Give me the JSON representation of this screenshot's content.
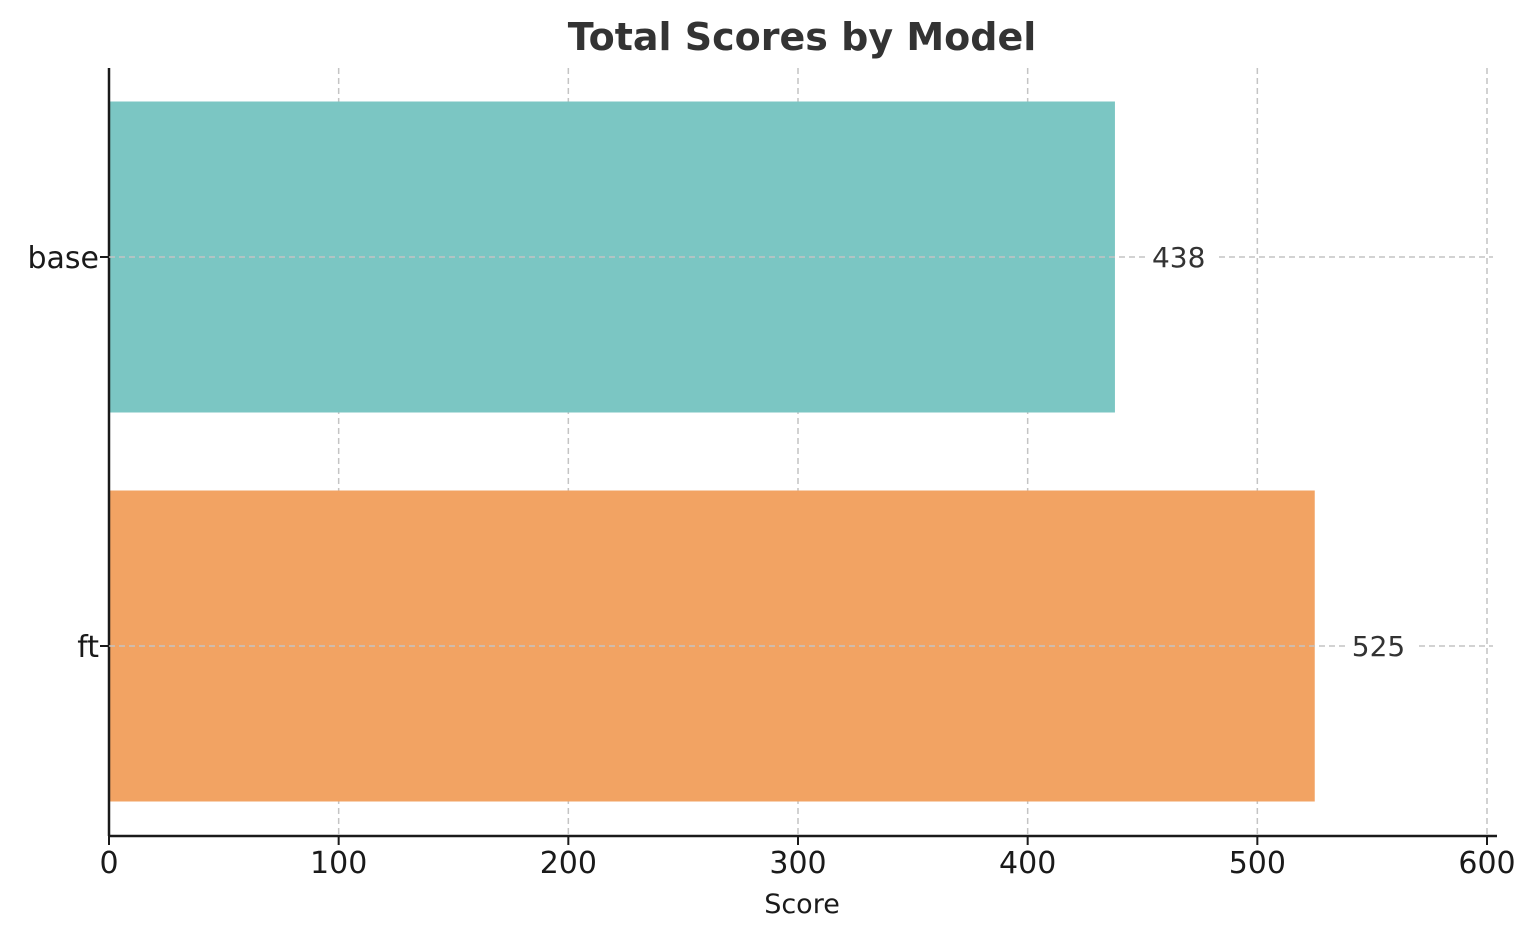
{
  "chart_data": {
    "type": "bar",
    "orientation": "horizontal",
    "title": "Total Scores by Model",
    "xlabel": "Score",
    "ylabel": "",
    "xlim": [
      0,
      600
    ],
    "xticks": [
      0,
      100,
      200,
      300,
      400,
      500,
      600
    ],
    "categories": [
      "base",
      "ft"
    ],
    "values": [
      438,
      525
    ],
    "data_labels": [
      "438",
      "525"
    ],
    "colors": [
      "#7bc6c3",
      "#f2a363"
    ],
    "grid": true,
    "legend": "none"
  }
}
